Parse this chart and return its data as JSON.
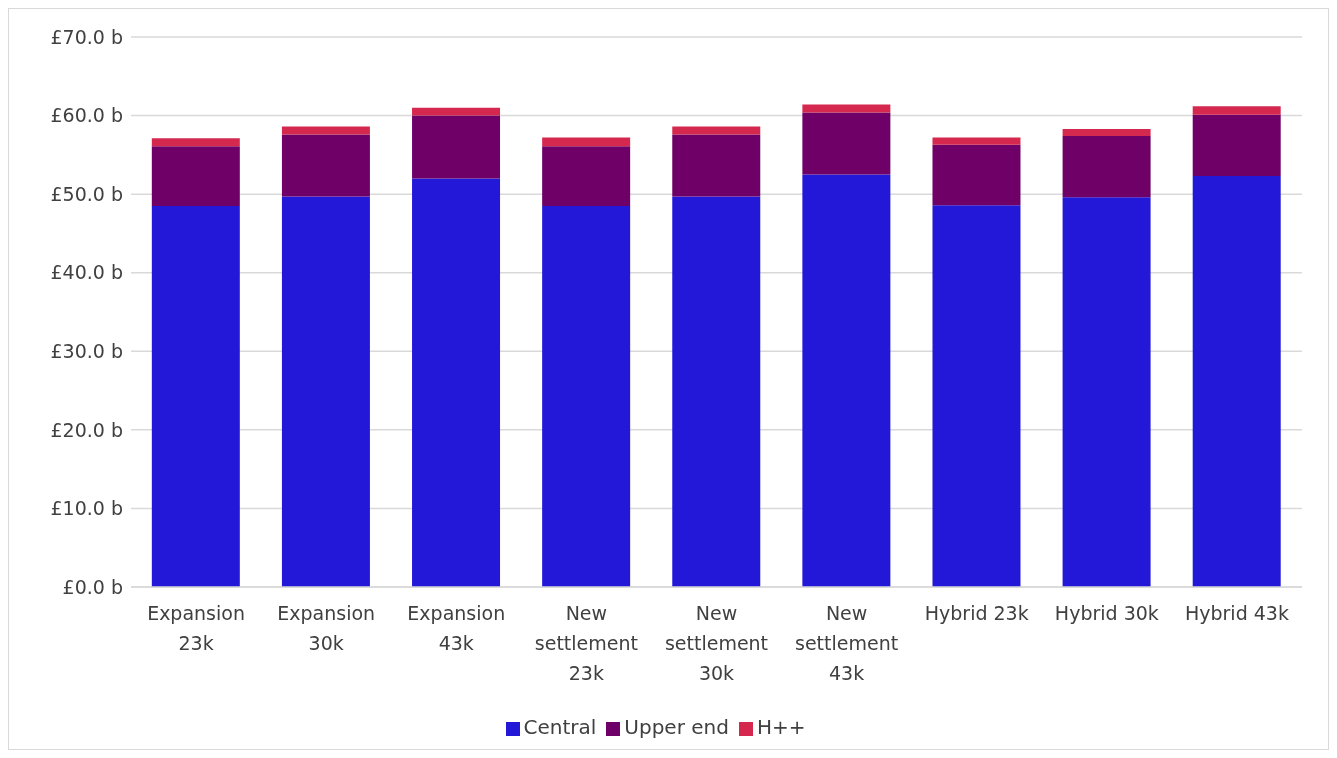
{
  "chart_data": {
    "type": "bar",
    "stacked": true,
    "categories": [
      "Expansion 23k",
      "Expansion 30k",
      "Expansion 43k",
      "New settlement 23k",
      "New settlement 30k",
      "New settlement 43k",
      "Hybrid 23k",
      "Hybrid 30k",
      "Hybrid 43k"
    ],
    "series": [
      {
        "name": "Central",
        "color": "#2318d8",
        "values": [
          48.5,
          49.7,
          52.0,
          48.5,
          49.7,
          52.5,
          48.6,
          49.6,
          52.3
        ]
      },
      {
        "name": "Upper end",
        "color": "#6e0068",
        "values": [
          7.6,
          7.9,
          8.0,
          7.6,
          7.9,
          7.9,
          7.7,
          7.8,
          7.8
        ]
      },
      {
        "name": "H++",
        "color": "#d5284f",
        "values": [
          1.0,
          1.0,
          1.0,
          1.1,
          1.0,
          1.0,
          0.9,
          0.9,
          1.1
        ]
      }
    ],
    "ylim": [
      0,
      70
    ],
    "yticks": [
      {
        "value": 0,
        "label": "£0.0 b"
      },
      {
        "value": 10,
        "label": "£10.0 b"
      },
      {
        "value": 20,
        "label": "£20.0 b"
      },
      {
        "value": 30,
        "label": "£30.0 b"
      },
      {
        "value": 40,
        "label": "£40.0 b"
      },
      {
        "value": 50,
        "label": "£50.0 b"
      },
      {
        "value": 60,
        "label": "£60.0 b"
      },
      {
        "value": 70,
        "label": "£70.0 b"
      }
    ],
    "grid": "y",
    "legend": "bottom"
  }
}
